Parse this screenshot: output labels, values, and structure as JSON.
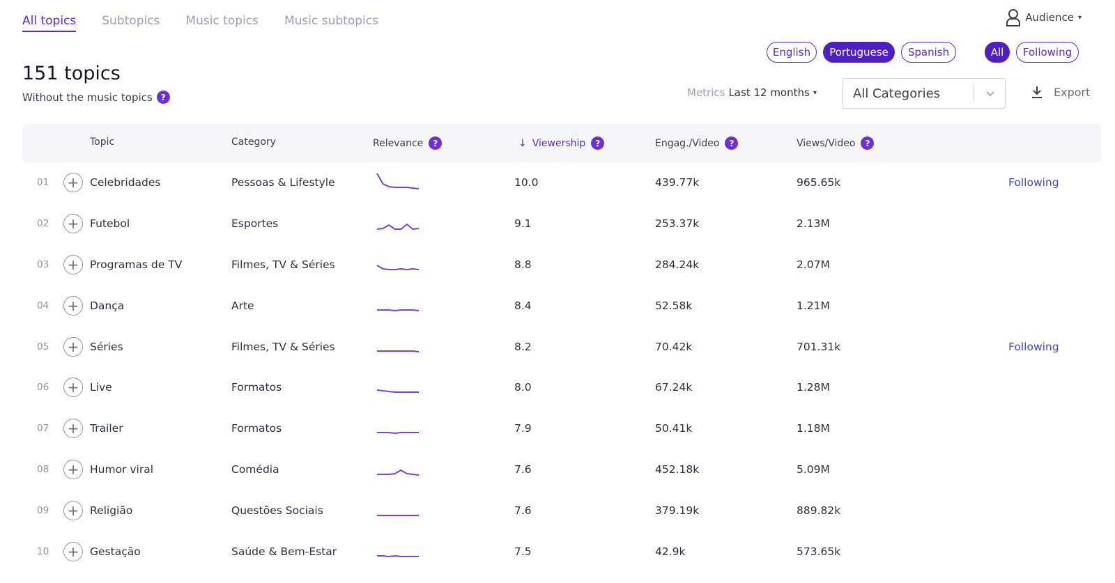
{
  "tabs": [
    "All topics",
    "Subtopics",
    "Music topics",
    "Music subtopics"
  ],
  "audience": {
    "label": "Audience"
  },
  "languages": [
    "English",
    "Portuguese",
    "Spanish"
  ],
  "selected_language": "Portuguese",
  "follow_filters": [
    "All",
    "Following"
  ],
  "selected_filter": "All",
  "page": {
    "count_title": "151 topics",
    "subtitle": "Without the music topics"
  },
  "metrics": {
    "label": "Metrics",
    "period": "Last 12 months"
  },
  "category_select": {
    "value": "All Categories"
  },
  "export_label": "Export",
  "columns": {
    "topic": "Topic",
    "category": "Category",
    "relevance": "Relevance",
    "viewership": "Viewership",
    "engagement": "Engag./Video",
    "views": "Views/Video"
  },
  "rows": [
    {
      "rank": "01",
      "topic": "Celebridades",
      "category": "Pessoas & Lifestyle",
      "viewership": "10.0",
      "engagement": "439.77k",
      "views": "965.65k",
      "status": "Following",
      "trend": [
        24,
        9,
        5,
        4,
        4,
        4,
        3,
        2
      ]
    },
    {
      "rank": "02",
      "topic": "Futebol",
      "category": "Esportes",
      "viewership": "9.1",
      "engagement": "253.37k",
      "views": "2.13M",
      "status": "",
      "trend": [
        3,
        4,
        9,
        3,
        3,
        10,
        3,
        4
      ]
    },
    {
      "rank": "03",
      "topic": "Programas de TV",
      "category": "Filmes, TV & Séries",
      "viewership": "8.8",
      "engagement": "284.24k",
      "views": "2.07M",
      "status": "",
      "trend": [
        10,
        5,
        4,
        4,
        5,
        4,
        5,
        4
      ]
    },
    {
      "rank": "04",
      "topic": "Dança",
      "category": "Arte",
      "viewership": "8.4",
      "engagement": "52.58k",
      "views": "1.21M",
      "status": "",
      "trend": [
        5,
        5,
        5,
        4,
        5,
        5,
        5,
        4
      ]
    },
    {
      "rank": "05",
      "topic": "Séries",
      "category": "Filmes, TV & Séries",
      "viewership": "8.2",
      "engagement": "70.42k",
      "views": "701.31k",
      "status": "Following",
      "trend": [
        5,
        5,
        5,
        5,
        5,
        5,
        5,
        4
      ]
    },
    {
      "rank": "06",
      "topic": "Live",
      "category": "Formatos",
      "viewership": "8.0",
      "engagement": "67.24k",
      "views": "1.28M",
      "status": "",
      "trend": [
        7,
        6,
        5,
        4,
        4,
        4,
        4,
        4
      ]
    },
    {
      "rank": "07",
      "topic": "Trailer",
      "category": "Formatos",
      "viewership": "7.9",
      "engagement": "50.41k",
      "views": "1.18M",
      "status": "",
      "trend": [
        5,
        5,
        5,
        4,
        5,
        5,
        5,
        5
      ]
    },
    {
      "rank": "08",
      "topic": "Humor viral",
      "category": "Comédia",
      "viewership": "7.6",
      "engagement": "452.18k",
      "views": "5.09M",
      "status": "",
      "trend": [
        4,
        4,
        4,
        5,
        10,
        5,
        4,
        3
      ]
    },
    {
      "rank": "09",
      "topic": "Religião",
      "category": "Questões Sociais",
      "viewership": "7.6",
      "engagement": "379.19k",
      "views": "889.82k",
      "status": "",
      "trend": [
        4,
        4,
        4,
        4,
        4,
        4,
        4,
        4
      ]
    },
    {
      "rank": "10",
      "topic": "Gestação",
      "category": "Saúde & Bem-Estar",
      "viewership": "7.5",
      "engagement": "42.9k",
      "views": "573.65k",
      "status": "",
      "trend": [
        5,
        5,
        4,
        5,
        4,
        4,
        4,
        4
      ]
    }
  ],
  "colors": {
    "accent": "#5b2bd1",
    "following_link": "#3d47d9",
    "sparkline": "#7a3fe0"
  }
}
